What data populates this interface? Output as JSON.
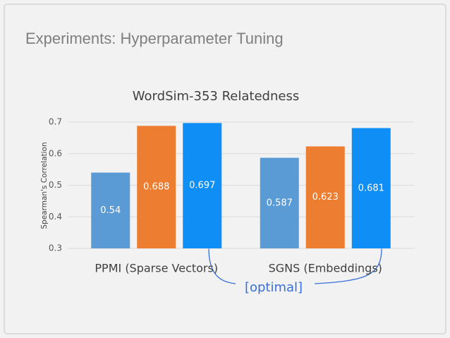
{
  "slide_title": "Experiments: Hyperparameter Tuning",
  "chart_data": {
    "type": "bar",
    "title": "WordSim-353 Relatedness",
    "ylabel": "Spearman's Correlation",
    "categories": [
      "PPMI (Sparse Vectors)",
      "SGNS (Embeddings)"
    ],
    "series": [
      {
        "color": "#5b9bd5",
        "values": [
          0.54,
          0.587
        ]
      },
      {
        "color": "#ed7d31",
        "values": [
          0.688,
          0.623
        ]
      },
      {
        "color": "#0f8ff5",
        "values": [
          0.697,
          0.681
        ]
      }
    ],
    "ylim": [
      0.3,
      0.7
    ],
    "yticks": [
      0.3,
      0.4,
      0.5,
      0.6,
      0.7
    ],
    "grid": true,
    "annotation": "[optimal]"
  }
}
